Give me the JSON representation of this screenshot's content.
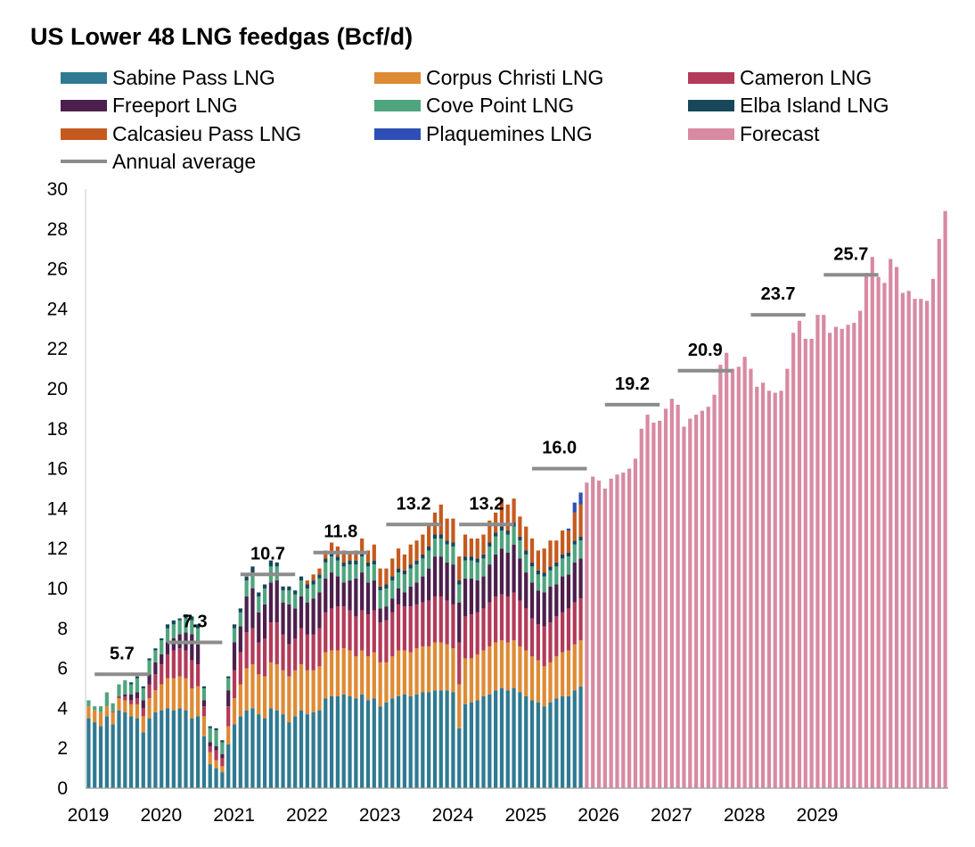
{
  "chart_data": {
    "type": "bar",
    "title": "US Lower 48 LNG feedgas (Bcf/d)",
    "xlabel": "",
    "ylabel": "",
    "ylim": [
      0,
      30
    ],
    "y_ticks": [
      0,
      2,
      4,
      6,
      8,
      10,
      12,
      14,
      16,
      18,
      20,
      22,
      24,
      26,
      28,
      30
    ],
    "year_ticks": [
      "2019",
      "2020",
      "2021",
      "2022",
      "2023",
      "2024",
      "2025",
      "2026",
      "2027",
      "2028",
      "2029"
    ],
    "colors": {
      "Sabine Pass LNG": "#2f7a92",
      "Corpus Christi LNG": "#de8b35",
      "Cameron LNG": "#b23b5a",
      "Freeport LNG": "#4d1f4d",
      "Cove Point LNG": "#4fa57e",
      "Elba Island LNG": "#16485a",
      "Calcasieu Pass LNG": "#c55a1f",
      "Plaquemines LNG": "#2f4fb5",
      "Forecast": "#d88aa3",
      "Annual average": "#8c8c8c"
    },
    "legend": [
      {
        "label": "Sabine Pass LNG",
        "kind": "bar"
      },
      {
        "label": "Corpus Christi LNG",
        "kind": "bar"
      },
      {
        "label": "Cameron LNG",
        "kind": "bar"
      },
      {
        "label": "Freeport LNG",
        "kind": "bar"
      },
      {
        "label": "Cove Point LNG",
        "kind": "bar"
      },
      {
        "label": "Elba Island LNG",
        "kind": "bar"
      },
      {
        "label": "Calcasieu Pass LNG",
        "kind": "bar"
      },
      {
        "label": "Plaquemines LNG",
        "kind": "bar"
      },
      {
        "label": "Forecast",
        "kind": "bar"
      },
      {
        "label": "Annual average",
        "kind": "line"
      }
    ],
    "start_month": "2019-01",
    "months_per_year": 12,
    "historical_series_order": [
      "Sabine Pass LNG",
      "Corpus Christi LNG",
      "Cameron LNG",
      "Freeport LNG",
      "Cove Point LNG",
      "Elba Island LNG",
      "Calcasieu Pass LNG",
      "Plaquemines LNG"
    ],
    "historical_monthly": [
      [
        3.5,
        0.6,
        0,
        0,
        0.3,
        0,
        0,
        0
      ],
      [
        3.3,
        0.6,
        0,
        0,
        0.2,
        0,
        0,
        0
      ],
      [
        3.1,
        0.7,
        0,
        0,
        0.3,
        0,
        0,
        0
      ],
      [
        3.6,
        0.5,
        0,
        0,
        0.7,
        0,
        0,
        0
      ],
      [
        3.2,
        0.6,
        0.05,
        0,
        0.4,
        0,
        0,
        0
      ],
      [
        3.9,
        0.6,
        0.1,
        0,
        0.6,
        0,
        0,
        0
      ],
      [
        3.8,
        0.6,
        0.2,
        0.1,
        0.7,
        0,
        0,
        0
      ],
      [
        3.6,
        0.6,
        0.2,
        0.3,
        0.5,
        0.1,
        0,
        0
      ],
      [
        3.5,
        0.7,
        0.3,
        0.3,
        0.7,
        0.1,
        0,
        0
      ],
      [
        2.8,
        0.8,
        0.4,
        0.4,
        0.6,
        0.1,
        0,
        0
      ],
      [
        3.5,
        1.0,
        0.7,
        0.5,
        0.7,
        0.1,
        0,
        0
      ],
      [
        3.8,
        1.1,
        0.8,
        0.6,
        0.6,
        0.1,
        0,
        0
      ],
      [
        3.9,
        1.3,
        1.0,
        0.5,
        0.7,
        0.1,
        0,
        0
      ],
      [
        4.0,
        1.5,
        1.2,
        0.6,
        0.7,
        0.2,
        0,
        0
      ],
      [
        3.9,
        1.6,
        1.4,
        0.6,
        0.7,
        0.2,
        0,
        0
      ],
      [
        4.0,
        1.6,
        1.4,
        0.7,
        0.7,
        0.1,
        0,
        0
      ],
      [
        3.9,
        1.6,
        1.4,
        0.9,
        0.7,
        0.2,
        0,
        0
      ],
      [
        3.5,
        1.5,
        1.4,
        1.3,
        0.7,
        0.2,
        0,
        0
      ],
      [
        3.6,
        1.5,
        1.1,
        1.0,
        0.8,
        0.2,
        0,
        0
      ],
      [
        2.6,
        1.0,
        0.5,
        0.3,
        0.6,
        0.1,
        0,
        0
      ],
      [
        1.2,
        0.6,
        0.3,
        0.2,
        0.7,
        0.1,
        0,
        0
      ],
      [
        1.0,
        0.4,
        0.5,
        0.2,
        0.8,
        0.1,
        0,
        0
      ],
      [
        0.8,
        0.3,
        0.4,
        0.2,
        0.6,
        0.1,
        0,
        0
      ],
      [
        2.2,
        0.9,
        1.0,
        0.8,
        0.6,
        0.1,
        0,
        0
      ],
      [
        3.2,
        1.3,
        1.4,
        1.4,
        0.7,
        0.2,
        0,
        0
      ],
      [
        3.6,
        1.6,
        1.6,
        1.3,
        0.7,
        0.2,
        0,
        0
      ],
      [
        3.9,
        2.1,
        1.8,
        1.8,
        0.8,
        0.2,
        0,
        0
      ],
      [
        4.0,
        2.2,
        1.8,
        2.0,
        0.8,
        0.3,
        0,
        0
      ],
      [
        3.7,
        2.0,
        1.6,
        1.5,
        0.8,
        0.2,
        0,
        0
      ],
      [
        3.5,
        2.1,
        1.9,
        1.7,
        0.8,
        0.2,
        0,
        0
      ],
      [
        4.0,
        2.3,
        2.0,
        2.0,
        0.8,
        0.3,
        0,
        0
      ],
      [
        3.9,
        2.3,
        2.1,
        2.1,
        0.7,
        0.2,
        0,
        0
      ],
      [
        3.7,
        2.2,
        1.8,
        1.6,
        0.6,
        0.2,
        0,
        0
      ],
      [
        3.3,
        2.3,
        1.6,
        2.0,
        0.7,
        0.2,
        0,
        0
      ],
      [
        3.6,
        2.3,
        1.6,
        1.5,
        0.7,
        0.2,
        0,
        0
      ],
      [
        3.9,
        2.3,
        1.8,
        1.6,
        0.8,
        0.2,
        0,
        0
      ],
      [
        3.7,
        2.2,
        1.8,
        1.6,
        0.7,
        0.2,
        0.2,
        0
      ],
      [
        3.8,
        2.1,
        1.8,
        1.8,
        0.7,
        0.2,
        0.3,
        0
      ],
      [
        3.9,
        2.2,
        1.9,
        1.8,
        0.7,
        0.2,
        0.3,
        0
      ],
      [
        4.5,
        2.3,
        2.0,
        1.7,
        0.8,
        0.2,
        0.4,
        0
      ],
      [
        4.6,
        2.3,
        2.1,
        1.8,
        0.8,
        0.2,
        0.5,
        0
      ],
      [
        4.6,
        2.3,
        2.2,
        1.5,
        0.8,
        0.2,
        0.5,
        0
      ],
      [
        4.7,
        2.3,
        2.1,
        1.2,
        0.8,
        0.2,
        0.6,
        0
      ],
      [
        4.6,
        2.3,
        2.0,
        1.5,
        0.8,
        0.2,
        0.4,
        0
      ],
      [
        4.5,
        2.1,
        2.0,
        1.9,
        0.7,
        0.2,
        0.5,
        0
      ],
      [
        4.7,
        2.2,
        2.0,
        1.9,
        0.8,
        0.2,
        0.7,
        0
      ],
      [
        4.4,
        2.2,
        2.1,
        1.6,
        0.8,
        0.2,
        0.6,
        0
      ],
      [
        4.5,
        2.3,
        2.1,
        1.5,
        0.8,
        0.2,
        0.8,
        0
      ],
      [
        4.1,
        2.2,
        2.0,
        0.7,
        0.9,
        0.2,
        0.9,
        0
      ],
      [
        4.3,
        2.0,
        2.1,
        0.7,
        0.9,
        0.2,
        0.8,
        0
      ],
      [
        4.5,
        2.1,
        2.2,
        0.7,
        0.9,
        0.2,
        0.9,
        0
      ],
      [
        4.6,
        2.3,
        2.3,
        0.8,
        0.8,
        0.2,
        1.0,
        0
      ],
      [
        4.7,
        2.2,
        2.2,
        0.7,
        0.9,
        0.2,
        0.8,
        0
      ],
      [
        4.6,
        2.2,
        2.3,
        1.0,
        0.9,
        0.2,
        1.0,
        0
      ],
      [
        4.7,
        2.3,
        2.2,
        1.1,
        0.9,
        0.2,
        1.0,
        0
      ],
      [
        4.8,
        2.3,
        2.2,
        1.3,
        0.9,
        0.2,
        1.0,
        0
      ],
      [
        4.8,
        2.3,
        2.3,
        1.6,
        0.9,
        0.2,
        1.1,
        0
      ],
      [
        4.9,
        2.4,
        2.3,
        2.0,
        0.9,
        0.2,
        1.1,
        0
      ],
      [
        4.9,
        2.4,
        2.3,
        2.0,
        0.9,
        0.2,
        1.5,
        0
      ],
      [
        4.9,
        2.3,
        2.2,
        1.9,
        0.9,
        0.2,
        1.1,
        0
      ],
      [
        4.8,
        2.2,
        2.2,
        2.0,
        0.9,
        0.2,
        1.2,
        0
      ],
      [
        3.0,
        2.2,
        2.1,
        2.0,
        0.9,
        0.2,
        1.2,
        0
      ],
      [
        4.2,
        2.3,
        2.1,
        1.9,
        0.9,
        0.2,
        1.1,
        0
      ],
      [
        4.3,
        2.2,
        2.2,
        1.8,
        0.9,
        0.2,
        0.9,
        0
      ],
      [
        4.4,
        2.3,
        2.1,
        1.6,
        0.9,
        0.2,
        1.0,
        0
      ],
      [
        4.6,
        2.3,
        2.1,
        1.6,
        0.9,
        0.2,
        1.0,
        0
      ],
      [
        4.7,
        2.4,
        2.2,
        1.9,
        0.9,
        0.2,
        1.1,
        0
      ],
      [
        4.9,
        2.4,
        2.3,
        2.1,
        0.9,
        0.2,
        1.0,
        0
      ],
      [
        5.0,
        2.4,
        2.3,
        2.3,
        0.9,
        0.2,
        1.4,
        0
      ],
      [
        4.9,
        2.4,
        2.3,
        2.2,
        0.9,
        0.2,
        1.3,
        0
      ],
      [
        5.0,
        2.4,
        2.4,
        2.4,
        0.9,
        0.2,
        1.2,
        0
      ],
      [
        4.8,
        2.3,
        2.3,
        2.1,
        0.9,
        0.2,
        1.0,
        0
      ],
      [
        4.6,
        2.3,
        2.1,
        1.8,
        0.9,
        0.2,
        1.2,
        0
      ],
      [
        4.4,
        2.2,
        1.9,
        1.8,
        0.8,
        0.2,
        1.2,
        0
      ],
      [
        4.3,
        2.1,
        1.8,
        1.7,
        0.8,
        0.2,
        1.0,
        0
      ],
      [
        4.1,
        2.0,
        2.0,
        1.7,
        0.8,
        0.2,
        1.2,
        0
      ],
      [
        4.3,
        2.0,
        2.0,
        1.8,
        0.8,
        0.2,
        1.3,
        0
      ],
      [
        4.5,
        2.1,
        2.0,
        1.6,
        0.9,
        0.2,
        1.1,
        0
      ],
      [
        4.6,
        2.2,
        2.0,
        1.8,
        0.9,
        0.2,
        1.2,
        0
      ],
      [
        4.6,
        2.3,
        2.1,
        1.7,
        0.9,
        0.2,
        1.1,
        0.1
      ],
      [
        4.9,
        2.3,
        2.1,
        2.0,
        0.9,
        0.2,
        1.4,
        0.5
      ],
      [
        5.1,
        2.3,
        2.1,
        2.0,
        0.9,
        0.2,
        1.6,
        0.6
      ]
    ],
    "forecast_monthly": [
      15.3,
      15.6,
      15.4,
      15.0,
      15.5,
      15.7,
      15.8,
      16.0,
      16.5,
      18.0,
      18.7,
      18.3,
      18.4,
      19.0,
      19.5,
      19.2,
      18.1,
      18.5,
      18.7,
      18.9,
      19.1,
      19.7,
      21.2,
      21.8,
      21.0,
      21.1,
      21.6,
      21.0,
      20.1,
      20.3,
      19.9,
      19.8,
      19.9,
      21.0,
      22.8,
      23.4,
      22.5,
      22.5,
      23.7,
      23.7,
      22.8,
      23.1,
      23.0,
      23.2,
      23.3,
      23.9,
      25.8,
      26.6,
      25.6,
      25.3,
      26.5,
      26.1,
      24.8,
      24.9,
      24.5,
      24.5,
      24.4,
      25.5,
      27.5,
      28.9
    ],
    "annual_averages": [
      {
        "year": "2019",
        "value": 5.7,
        "label": "5.7"
      },
      {
        "year": "2020",
        "value": 7.3,
        "label": "7.3"
      },
      {
        "year": "2021",
        "value": 10.7,
        "label": "10.7"
      },
      {
        "year": "2022",
        "value": 11.8,
        "label": "11.8"
      },
      {
        "year": "2023",
        "value": 13.2,
        "label": "13.2"
      },
      {
        "year": "2024",
        "value": 13.2,
        "label": "13.2"
      },
      {
        "year": "2025",
        "value": 16.0,
        "label": "16.0"
      },
      {
        "year": "2026",
        "value": 19.2,
        "label": "19.2"
      },
      {
        "year": "2027",
        "value": 20.9,
        "label": "20.9"
      },
      {
        "year": "2028",
        "value": 23.7,
        "label": "23.7"
      },
      {
        "year": "2029",
        "value": 25.7,
        "label": "25.7"
      }
    ]
  }
}
